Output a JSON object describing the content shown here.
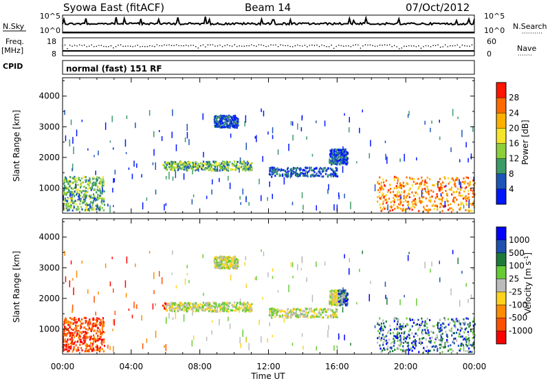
{
  "header": {
    "station": "Syowa East (fitACF)",
    "beam": "Beam 14",
    "date": "07/Oct/2012"
  },
  "strips": {
    "nsky_label": "N.Sky",
    "nsky_ticks": [
      "10^5",
      "10^0"
    ],
    "nsearch_label": "N.Search",
    "nsearch_ticks": [
      "10^5",
      "10^0"
    ],
    "freq_label": "Freq.",
    "freq_unit": "[MHz]",
    "freq_ticks": [
      "18",
      "8"
    ],
    "nave_label": "Nave",
    "nave_ticks": [
      "60",
      "0"
    ],
    "cpid_label": "CPID",
    "cpid_text": "normal (fast) 151 RF"
  },
  "chart_data": [
    {
      "type": "heatmap",
      "name": "power",
      "ylabel": "Slant Range [km]",
      "yticks": [
        "4000",
        "3000",
        "2000",
        "1000"
      ],
      "xticks": [
        "00:00",
        "04:00",
        "08:00",
        "12:00",
        "16:00",
        "20:00",
        "00:00"
      ],
      "ylim": [
        180,
        4600
      ],
      "colorbar": {
        "label": "Power [dB]",
        "ticks": [
          "28",
          "24",
          "20",
          "16",
          "12",
          "8",
          "4"
        ],
        "colors": [
          "#ff1500",
          "#ff6a00",
          "#ffb000",
          "#f5e42a",
          "#8ccf3a",
          "#3c9a68",
          "#1e54b8",
          "#0016ff"
        ]
      },
      "features": [
        {
          "t_start": 0.0,
          "t_end": 2.4,
          "range_start": 300,
          "range_end": 1400,
          "level": "medium"
        },
        {
          "t_start": 5.8,
          "t_end": 11.0,
          "range_start": 1600,
          "range_end": 1900,
          "level": "medium"
        },
        {
          "t_start": 8.8,
          "t_end": 10.2,
          "range_start": 3000,
          "range_end": 3400,
          "level": "low"
        },
        {
          "t_start": 12.0,
          "t_end": 16.0,
          "range_start": 1400,
          "range_end": 1700,
          "level": "low"
        },
        {
          "t_start": 15.5,
          "t_end": 16.6,
          "range_start": 1800,
          "range_end": 2300,
          "level": "low"
        },
        {
          "t_start": 18.3,
          "t_end": 24.0,
          "range_start": 250,
          "range_end": 1400,
          "level": "high"
        }
      ]
    },
    {
      "type": "heatmap",
      "name": "velocity",
      "ylabel": "Slant Range [km]",
      "yticks": [
        "4000",
        "3000",
        "2000",
        "1000"
      ],
      "xticks": [
        "00:00",
        "04:00",
        "08:00",
        "12:00",
        "16:00",
        "20:00",
        "00:00"
      ],
      "xlabel": "Time UT",
      "ylim": [
        180,
        4600
      ],
      "colorbar": {
        "label": "Velocity [m s",
        "label_sup": "-1",
        "ticks": [
          "1000",
          "500",
          "100",
          "25",
          "-25",
          "-100",
          "-500",
          "-1000"
        ],
        "colors": [
          "#0000ff",
          "#2050b0",
          "#1f7a3a",
          "#66cc33",
          "#bbbbbb",
          "#ffd21e",
          "#ff8c00",
          "#ff5000",
          "#ff0000"
        ]
      }
    }
  ]
}
